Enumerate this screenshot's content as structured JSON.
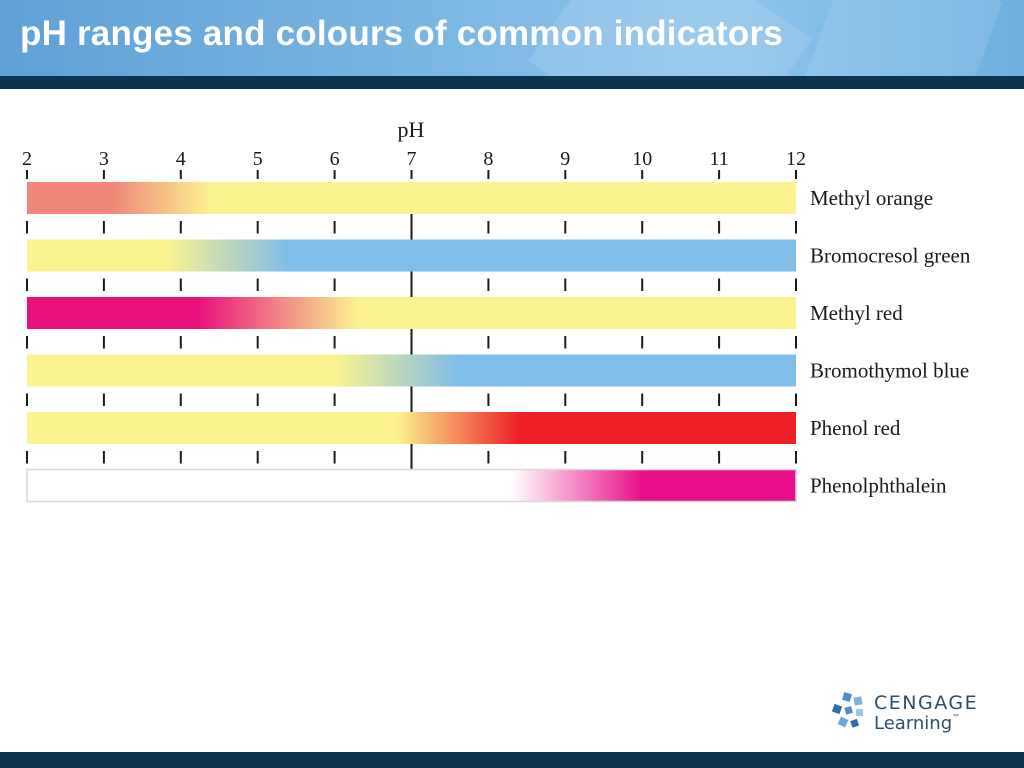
{
  "slide": {
    "title": "pH ranges and colours of common indicators"
  },
  "chart_data": {
    "type": "bar",
    "axis_label": "pH",
    "xlim": [
      2,
      12
    ],
    "ticks": [
      2,
      3,
      4,
      5,
      6,
      7,
      8,
      9,
      10,
      11,
      12
    ],
    "tick_labels": [
      "2",
      "3",
      "4",
      "5",
      "6",
      "7",
      "8",
      "9",
      "10",
      "11",
      "12"
    ],
    "indicators": [
      {
        "name": "Methyl orange",
        "transition": [
          3.1,
          4.4
        ],
        "low_color": "#f0867a",
        "high_color": "#fbf38f"
      },
      {
        "name": "Bromocresol green",
        "transition": [
          3.8,
          5.4
        ],
        "low_color": "#fbf38f",
        "high_color": "#80bde8"
      },
      {
        "name": "Methyl red",
        "transition": [
          4.2,
          6.3
        ],
        "low_color": "#e8107a",
        "high_color": "#fbf38f"
      },
      {
        "name": "Bromothymol blue",
        "transition": [
          6.0,
          7.6
        ],
        "low_color": "#fbf38f",
        "high_color": "#80bde8"
      },
      {
        "name": "Phenol red",
        "transition": [
          6.8,
          8.4
        ],
        "low_color": "#fbf38f",
        "high_color": "#ee1f27"
      },
      {
        "name": "Phenolphthalein",
        "transition": [
          8.3,
          10.0
        ],
        "low_color": "#ffffff",
        "high_color": "#e8108a"
      }
    ]
  },
  "logo": {
    "line1": "CENGAGE",
    "line2": "Learning",
    "trademark": "™"
  },
  "colors": {
    "header": "#7db8e4",
    "rule": "#0d3550",
    "logo": "#2d4f6c"
  }
}
